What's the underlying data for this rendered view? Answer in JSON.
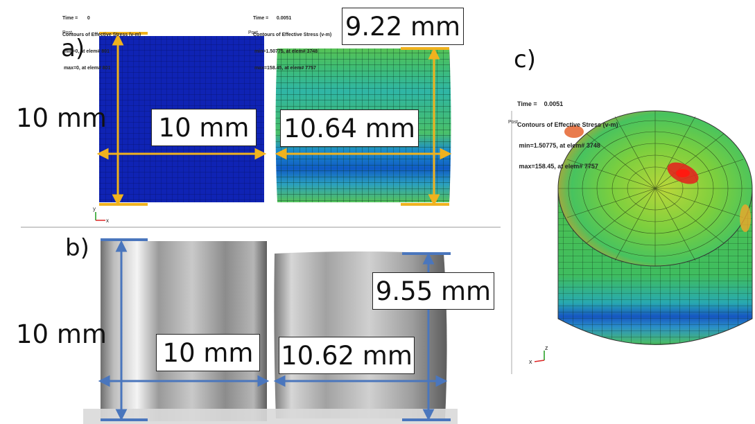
{
  "panel_a": {
    "label": "a)",
    "left_header": [
      "Time =       0",
      "Contours of Effective Stress (v-m)",
      " min=0, at elem# 801",
      " max=0, at elem# 801"
    ],
    "right_header": [
      "Time =      0.0051",
      "Contours of Effective Stress (v-m)",
      " min=1.50775, at elem# 3748",
      " max=158.45, at elem# 7757"
    ],
    "post_label": "Post",
    "height_label": "10 mm",
    "width_label": "10 mm",
    "deformed_height_label": "9.22 mm",
    "deformed_width_label": "10.64 mm"
  },
  "panel_b": {
    "label": "b)",
    "height_label": "10 mm",
    "width_label": "10 mm",
    "deformed_height_label": "9.55 mm",
    "deformed_width_label": "10.62 mm"
  },
  "panel_c": {
    "label": "c)",
    "header": [
      "Time =    0.0051",
      "Contours of Effective Stress (v-m)",
      " min=1.50775, at elem# 3748",
      " max=158.45, at elem# 7757"
    ],
    "post_label": "Post"
  },
  "colors": {
    "dimension_fe": "#f0b21e",
    "dimension_photo": "#4a76bd",
    "mesh_undeformed": "#0f23b4",
    "divider": "#999999"
  },
  "axis_labels": {
    "y": "y",
    "x": "x",
    "z": "z"
  }
}
